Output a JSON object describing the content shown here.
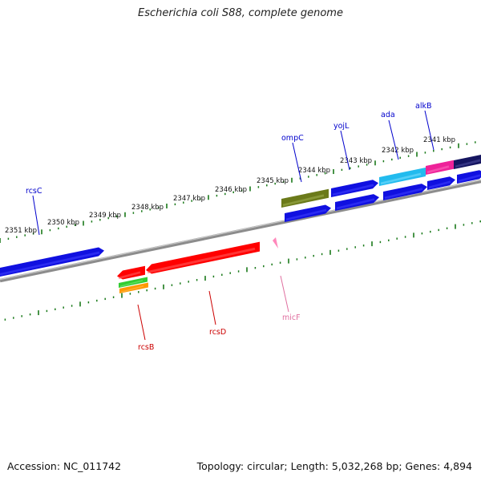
{
  "title": "Escherichia coli S88, complete genome",
  "footer": {
    "accession": "Accession: NC_011742",
    "summary": "Topology: circular; Length: 5,032,268 bp; Genes: 4,894"
  },
  "scale_labels": [
    "2351 kbp",
    "2350 kbp",
    "2349 kbp",
    "2348 kbp",
    "2347 kbp",
    "2346 kbp",
    "2345 kbp",
    "2344 kbp",
    "2343 kbp",
    "2342 kbp",
    "2341 kbp"
  ],
  "gene_labels": {
    "rcsC": "rcsC",
    "ompC": "ompC",
    "yojL": "yojL",
    "ada": "ada",
    "alkB": "alkB",
    "rcsB": "rcsB",
    "rcsD": "rcsD",
    "micF": "micF"
  },
  "colors": {
    "backbone": "#8c8c8c",
    "ticks": "#1a7a1a",
    "forward_gene": "#1010e0",
    "reverse_gene": "#ff0000",
    "label_blue": "#0000cc",
    "label_red": "#cc0000",
    "label_pink": "#e070a0",
    "olive": "#6b7a1a",
    "cyan": "#22bbee",
    "magenta": "#ee2299",
    "navy": "#151560",
    "green": "#33cc33",
    "orange": "#ff9900"
  }
}
